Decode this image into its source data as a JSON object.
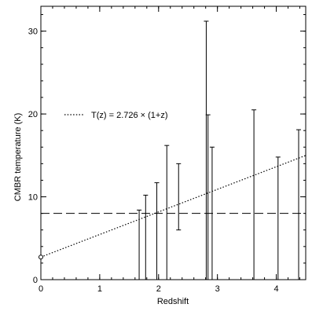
{
  "chart_data": {
    "type": "scatter",
    "xlabel": "Redshift",
    "ylabel": "CMBR temperature (K)",
    "xlim": [
      0,
      4.5
    ],
    "ylim": [
      0,
      33
    ],
    "xticks": [
      0,
      1,
      2,
      3,
      4
    ],
    "yticks": [
      0,
      10,
      20,
      30
    ],
    "xtick_labels": [
      "0",
      "1",
      "2",
      "3",
      "4"
    ],
    "ytick_labels": [
      "0",
      "10",
      "20",
      "30"
    ],
    "grid": false,
    "legend": {
      "placement": "upper-left",
      "entries": [
        {
          "label": "T(z) = 2.726 × (1+z)",
          "style": "dotted"
        }
      ]
    },
    "model_line": {
      "t0": 2.726,
      "style": "dotted"
    },
    "reference_line": {
      "y": 8.0,
      "style": "dashed"
    },
    "points": [
      {
        "x": 0.0,
        "y": 2.726,
        "marker": "circle"
      }
    ],
    "error_bars": [
      {
        "x": 1.67,
        "low": 0.0,
        "high": 8.4
      },
      {
        "x": 1.78,
        "low": 0.0,
        "high": 10.2
      },
      {
        "x": 1.97,
        "low": 0.0,
        "high": 11.7
      },
      {
        "x": 2.14,
        "low": 0.0,
        "high": 16.2
      },
      {
        "x": 2.34,
        "low": 6.0,
        "high": 14.0
      },
      {
        "x": 2.81,
        "low": 0.0,
        "high": 31.2
      },
      {
        "x": 2.84,
        "low": 0.0,
        "high": 19.9
      },
      {
        "x": 2.91,
        "low": 0.0,
        "high": 16.0
      },
      {
        "x": 3.62,
        "low": 0.0,
        "high": 20.5
      },
      {
        "x": 4.03,
        "low": 0.0,
        "high": 14.8
      },
      {
        "x": 4.38,
        "low": 0.0,
        "high": 18.1
      }
    ]
  }
}
